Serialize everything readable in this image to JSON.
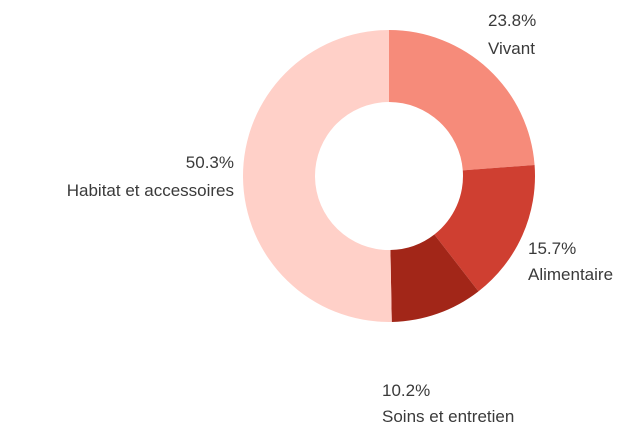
{
  "chart_data": {
    "type": "pie",
    "variant": "donut",
    "title": "",
    "slices": [
      {
        "label": "Vivant",
        "value": 23.8,
        "value_label": "23.8%",
        "color": "#f68b7a"
      },
      {
        "label": "Alimentaire",
        "value": 15.7,
        "value_label": "15.7%",
        "color": "#cf3f31"
      },
      {
        "label": "Soins et entretien",
        "value": 10.2,
        "value_label": "10.2%",
        "color": "#a22618"
      },
      {
        "label": "Habitat et accessoires",
        "value": 50.3,
        "value_label": "50.3%",
        "color": "#ffd0c8"
      }
    ],
    "legend": "none",
    "start": "top",
    "direction": "clockwise"
  }
}
